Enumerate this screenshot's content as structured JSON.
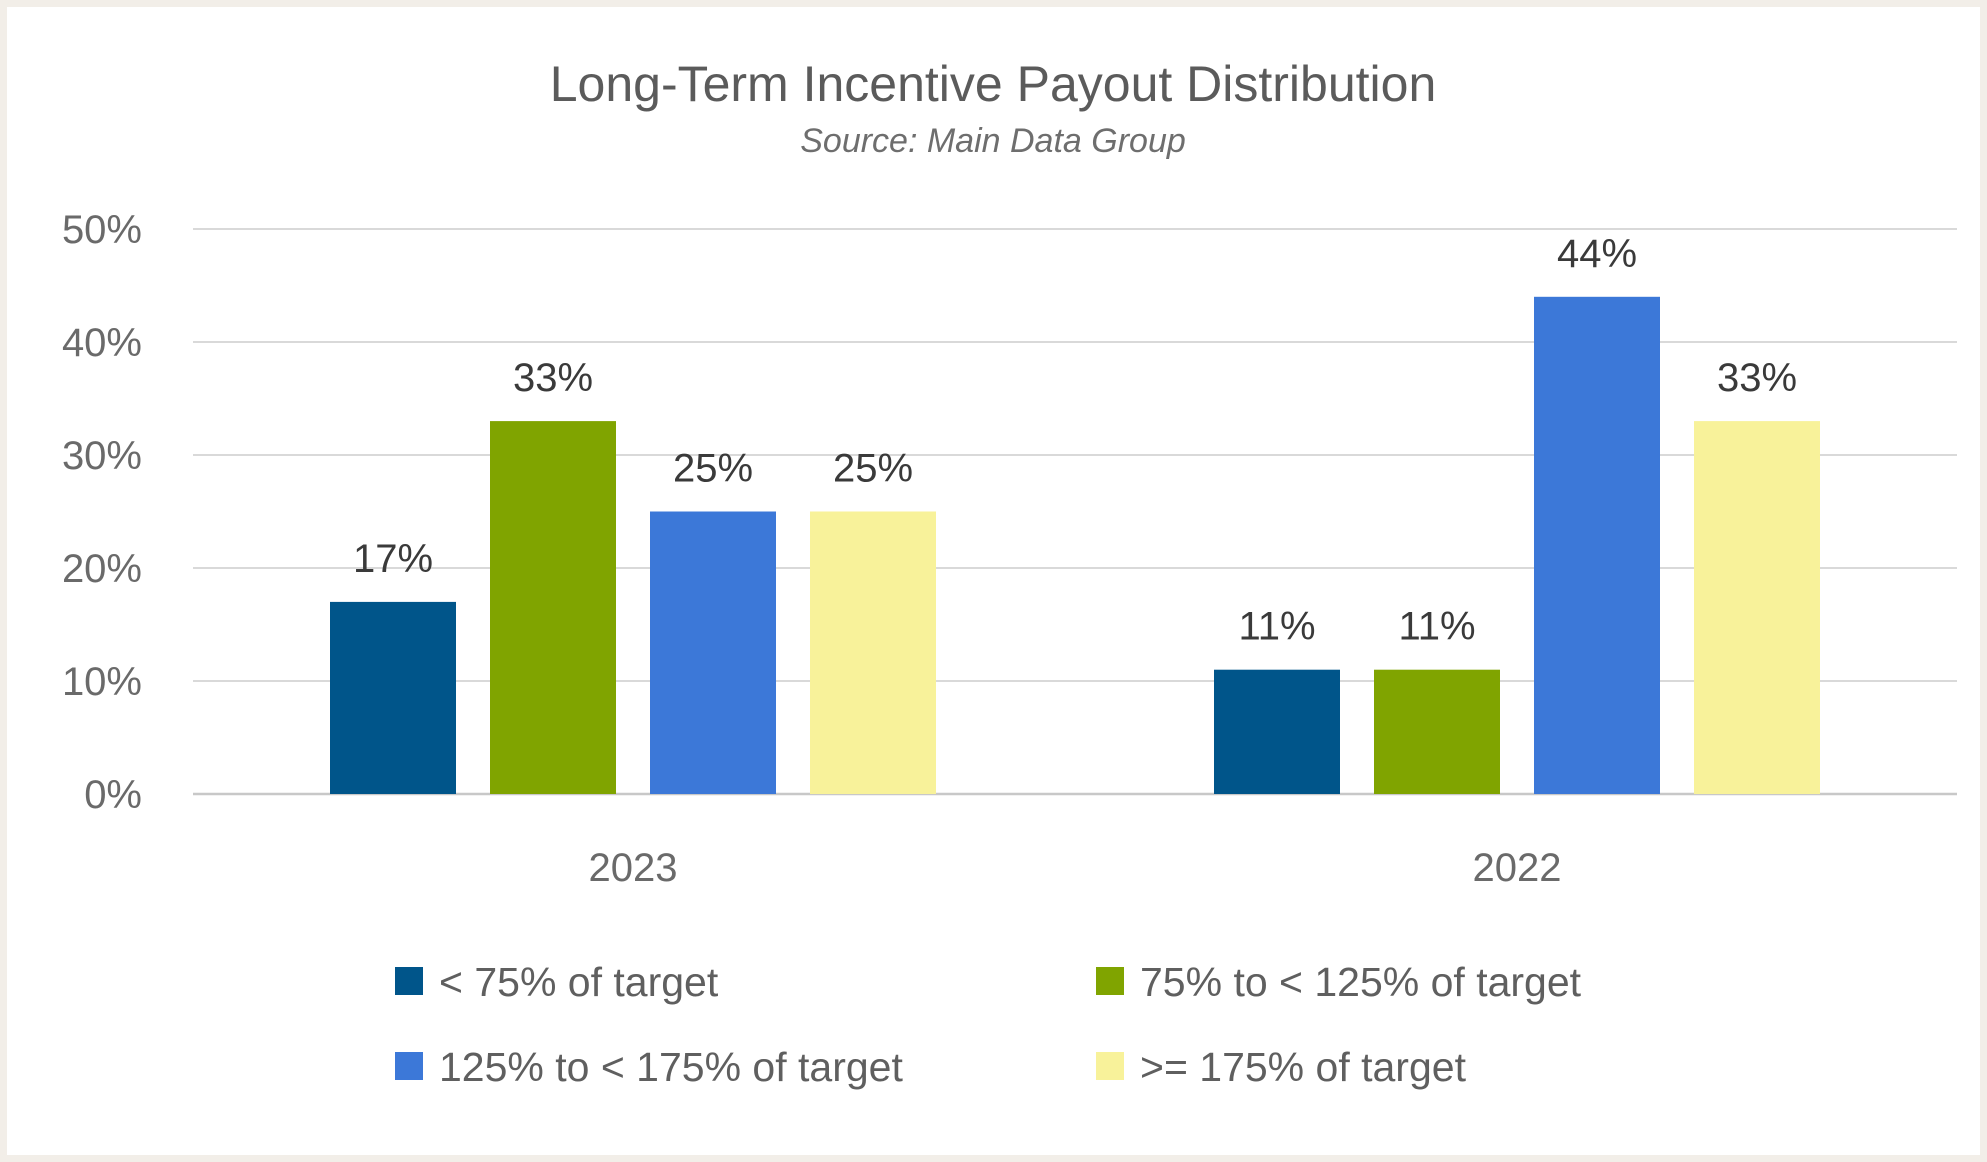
{
  "chart_data": {
    "type": "bar",
    "title": "Long-Term Incentive Payout Distribution",
    "subtitle": "Source: Main Data Group",
    "categories": [
      "2023",
      "2022"
    ],
    "series": [
      {
        "name": "< 75% of target",
        "color": "#00558a",
        "values": [
          17,
          11
        ],
        "labels": [
          "17%",
          "11%"
        ]
      },
      {
        "name": "75% to < 125% of target",
        "color": "#80a400",
        "values": [
          33,
          11
        ],
        "labels": [
          "33%",
          "11%"
        ]
      },
      {
        "name": "125% to < 175% of target",
        "color": "#3c78d8",
        "values": [
          25,
          44
        ],
        "labels": [
          "25%",
          "44%"
        ]
      },
      {
        "name": ">= 175% of target",
        "color": "#f8f29a",
        "values": [
          25,
          33
        ],
        "labels": [
          "25%",
          "33%"
        ]
      }
    ],
    "ylim": [
      0,
      50
    ],
    "yticks": [
      0,
      10,
      20,
      30,
      40,
      50
    ],
    "ytick_labels": [
      "0%",
      "10%",
      "20%",
      "30%",
      "40%",
      "50%"
    ],
    "grid": true,
    "legend_position": "bottom",
    "xlabel": "",
    "ylabel": ""
  }
}
